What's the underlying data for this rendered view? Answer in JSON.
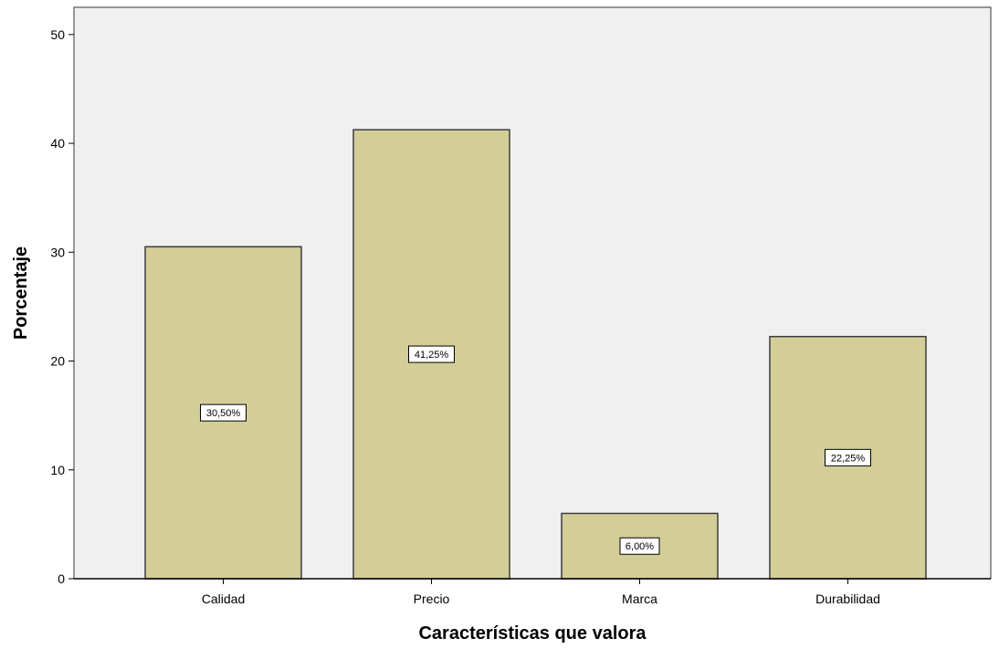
{
  "chart_data": {
    "type": "bar",
    "categories": [
      "Calidad",
      "Precio",
      "Marca",
      "Durabilidad"
    ],
    "values": [
      30.5,
      41.25,
      6.0,
      22.25
    ],
    "data_labels": [
      "30,50%",
      "41,25%",
      "6,00%",
      "22,25%"
    ],
    "xlabel": "Características que valora",
    "ylabel": "Porcentaje",
    "ylim": [
      0,
      52.5
    ],
    "yticks": [
      0,
      10,
      20,
      30,
      40,
      50
    ],
    "ytick_labels": [
      "0",
      "10",
      "20",
      "30",
      "40",
      "50"
    ],
    "grid": false,
    "colors": {
      "plot_background": "#f0f0f0",
      "bar_fill": "#d3ce97",
      "bar_stroke": "#3c3c3c",
      "label_box": "#ffffff"
    }
  }
}
